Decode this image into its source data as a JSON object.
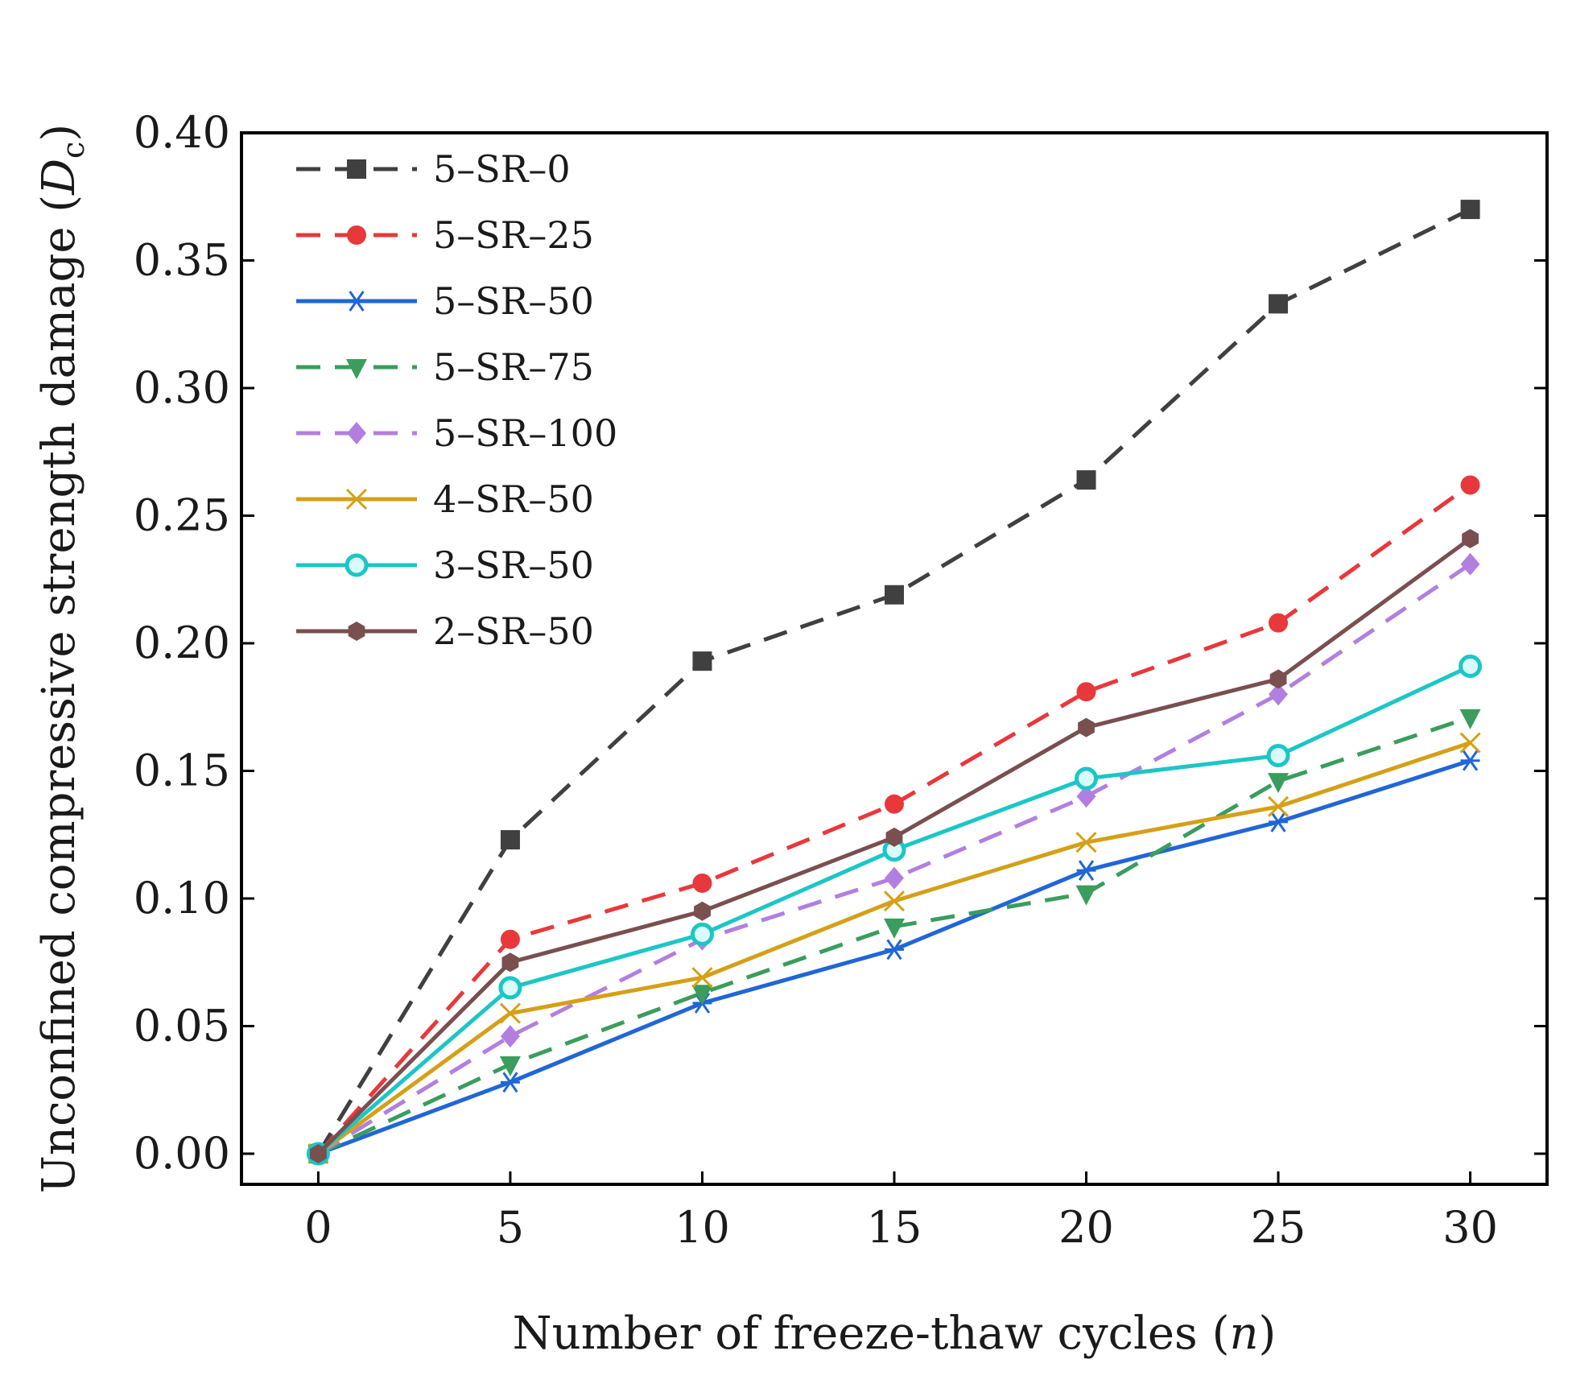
{
  "chart_data": {
    "type": "line",
    "title": "",
    "xlabel": {
      "prefix": "Number of freeze-thaw cycles (",
      "var": "n",
      "suffix": ")"
    },
    "ylabel": {
      "prefix": "Unconfined compressive strength damage (",
      "var": "D",
      "sub": "c",
      "suffix": ")"
    },
    "xlim": [
      -2,
      32
    ],
    "ylim": [
      -0.012,
      0.4
    ],
    "x": [
      0,
      5,
      10,
      15,
      20,
      25,
      30
    ],
    "xticks": [
      "0",
      "5",
      "10",
      "15",
      "20",
      "25",
      "30"
    ],
    "yticks": [
      "0.00",
      "0.05",
      "0.10",
      "0.15",
      "0.20",
      "0.25",
      "0.30",
      "0.35",
      "0.40"
    ],
    "legend_position": "top-left",
    "series": [
      {
        "name": "5–SR–0",
        "color": "#404040",
        "dash": true,
        "marker": "square",
        "values": [
          0,
          0.123,
          0.193,
          0.219,
          0.264,
          0.333,
          0.37
        ]
      },
      {
        "name": "5–SR–25",
        "color": "#e8383b",
        "dash": true,
        "marker": "circle",
        "values": [
          0,
          0.084,
          0.106,
          0.137,
          0.181,
          0.208,
          0.262
        ]
      },
      {
        "name": "5–SR–50",
        "color": "#2066d6",
        "dash": false,
        "marker": "asterisk",
        "values": [
          0,
          0.028,
          0.059,
          0.08,
          0.111,
          0.13,
          0.154
        ]
      },
      {
        "name": "5–SR–75",
        "color": "#3a9d5d",
        "dash": true,
        "marker": "triangle-down",
        "values": [
          0,
          0.035,
          0.063,
          0.089,
          0.102,
          0.146,
          0.171
        ]
      },
      {
        "name": "5–SR–100",
        "color": "#b27fe0",
        "dash": true,
        "marker": "diamond",
        "values": [
          0,
          0.046,
          0.084,
          0.108,
          0.14,
          0.18,
          0.231
        ]
      },
      {
        "name": "4–SR–50",
        "color": "#d4a017",
        "dash": false,
        "marker": "x",
        "values": [
          0,
          0.055,
          0.069,
          0.099,
          0.122,
          0.136,
          0.161
        ]
      },
      {
        "name": "3–SR–50",
        "color": "#1cc6c6",
        "dash": false,
        "marker": "ring",
        "values": [
          0,
          0.065,
          0.086,
          0.119,
          0.147,
          0.156,
          0.191
        ]
      },
      {
        "name": "2–SR–50",
        "color": "#7a4f4f",
        "dash": false,
        "marker": "hexagon",
        "values": [
          0,
          0.075,
          0.095,
          0.124,
          0.167,
          0.186,
          0.241
        ]
      }
    ]
  }
}
